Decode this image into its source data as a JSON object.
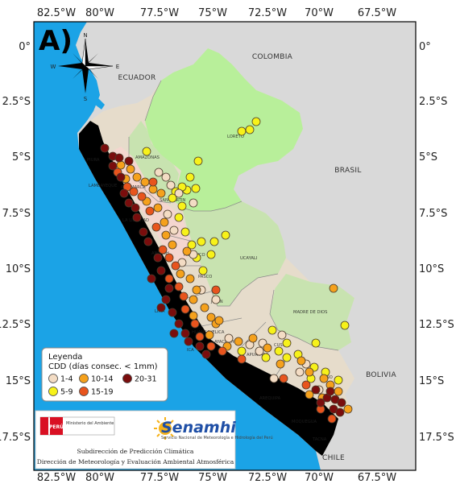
{
  "panel_label": "A)",
  "axes": {
    "x_ticks": [
      "82.5°W",
      "80°W",
      "77.5°W",
      "75°W",
      "72.5°W",
      "70°W",
      "67.5°W"
    ],
    "y_ticks": [
      "0°",
      "2.5°S",
      "5°S",
      "7.5°S",
      "10°S",
      "12.5°S",
      "15°S",
      "17.5°S"
    ]
  },
  "countries": {
    "colombia": "COLOMBIA",
    "ecuador": "ECUADOR",
    "brasil": "BRASIL",
    "bolivia": "BOLIVIA",
    "chile": "CHILE"
  },
  "regions": {
    "loreto": "LORETO",
    "amazonas": "AMAZONAS",
    "piura": "PIURA",
    "lambayeque": "LAMBAYEQUE",
    "cajamarca": "CAJAMARCA",
    "san_martin": "SAN MARTIN",
    "la_libertad": "LA LIBERTAD",
    "ancash": "ANCASH",
    "huanuco": "HUANUCO",
    "ucayali": "UCAYALI",
    "pasco": "PASCO",
    "junin": "JUNIN",
    "lima": "LIMA",
    "madre_de_dios": "MADRE DE DIOS",
    "huancavelica": "HUANCAVELICA",
    "ica": "ICA",
    "ayacucho": "AYACUCHO",
    "apurimac": "APURIMAC",
    "cusco": "CUSCO",
    "puno": "PUNO",
    "arequipa": "AREQUIPA",
    "moquegua": "MOQUEGUA",
    "tacna": "TACNA"
  },
  "compass": {
    "n": "N",
    "s": "S",
    "e": "E",
    "w": "W"
  },
  "legend": {
    "title": "Leyenda",
    "subtitle": "CDD (días consec. < 1mm)",
    "classes": [
      {
        "label": "1-4",
        "color": "#f3dcc4"
      },
      {
        "label": "5-9",
        "color": "#f7f21a"
      },
      {
        "label": "10-14",
        "color": "#f5a11c"
      },
      {
        "label": "15-19",
        "color": "#e8541d"
      },
      {
        "label": "20-31",
        "color": "#7a0d0d"
      }
    ]
  },
  "institution": {
    "peru_badge": "PERÚ",
    "ministry": "Ministerio del Ambiente",
    "logo": "Senamhi",
    "logo_subtext": "Servicio Nacional de Meteorología e Hidrología del Perú",
    "line1": "Subdirección de Predicción Climática",
    "line2": "Dirección de Meteorología y Evaluación Ambiental Atmosférica"
  },
  "colors": {
    "ocean": "#1ba3e6",
    "land_outside": "#d9d9d9",
    "class_20_31_area": "#000000",
    "class_15_19_area": "#f4d6cf",
    "class_10_14_area": "#e6dccb",
    "class_5_9_area": "#c8e3b0",
    "class_1_4_area": "#b8ef9a"
  }
}
